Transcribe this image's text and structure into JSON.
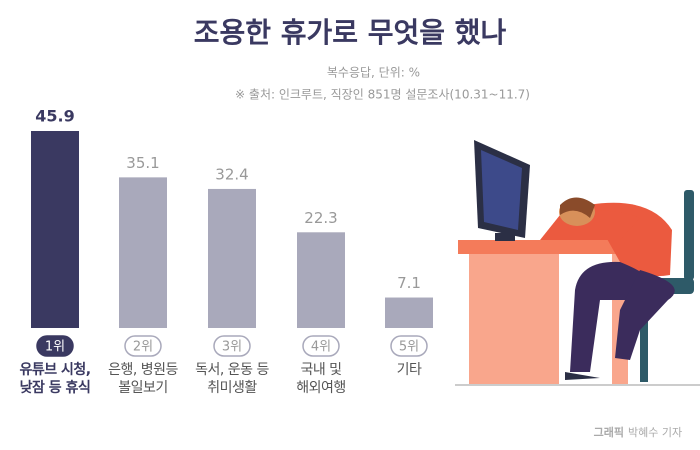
{
  "chart_data": {
    "type": "bar",
    "title": "조용한 휴가로 무엇을 했나",
    "subtitle": "복수응답, 단위: %",
    "source": "※ 출처: 인크루트, 직장인 851명 설문조사(10.31~11.7)",
    "credit_label": "그래픽",
    "credit_name": "박혜수 기자",
    "ranks": [
      "1위",
      "2위",
      "3위",
      "4위",
      "5위"
    ],
    "categories": [
      "유튜브 시청,\n낮잠 등 휴식",
      "은행, 병원등\n볼일보기",
      "독서, 운동 등\n취미생활",
      "국내 및\n해외여행",
      "기타"
    ],
    "values": [
      45.9,
      35.1,
      32.4,
      22.3,
      7.1
    ],
    "colors": [
      "#3a3961",
      "#a9a9bb",
      "#a9a9bb",
      "#a9a9bb",
      "#a9a9bb"
    ]
  }
}
